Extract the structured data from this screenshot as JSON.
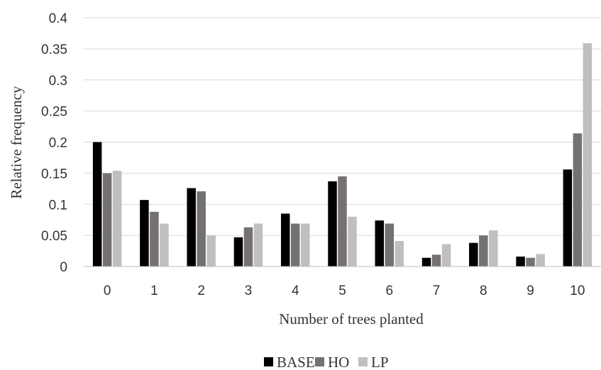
{
  "chart_data": {
    "type": "bar",
    "title": "",
    "xlabel": "Number of trees planted",
    "ylabel": "Relative frequency",
    "ylim": [
      0,
      0.4
    ],
    "yticks": [
      "0",
      "0.05",
      "0.1",
      "0.15",
      "0.2",
      "0.25",
      "0.3",
      "0.35",
      "0.4"
    ],
    "categories": [
      "0",
      "1",
      "2",
      "3",
      "4",
      "5",
      "6",
      "7",
      "8",
      "9",
      "10"
    ],
    "series": [
      {
        "name": "BASE",
        "color": "#000000",
        "values": [
          0.2,
          0.107,
          0.126,
          0.047,
          0.085,
          0.137,
          0.074,
          0.014,
          0.038,
          0.016,
          0.156
        ]
      },
      {
        "name": "HO",
        "color": "#767171",
        "values": [
          0.15,
          0.088,
          0.121,
          0.063,
          0.069,
          0.145,
          0.069,
          0.019,
          0.05,
          0.014,
          0.214
        ]
      },
      {
        "name": "LP",
        "color": "#bfbfbf",
        "values": [
          0.154,
          0.069,
          0.05,
          0.069,
          0.069,
          0.08,
          0.041,
          0.036,
          0.058,
          0.02,
          0.359
        ]
      }
    ],
    "grid": true,
    "legend": "bottom"
  }
}
